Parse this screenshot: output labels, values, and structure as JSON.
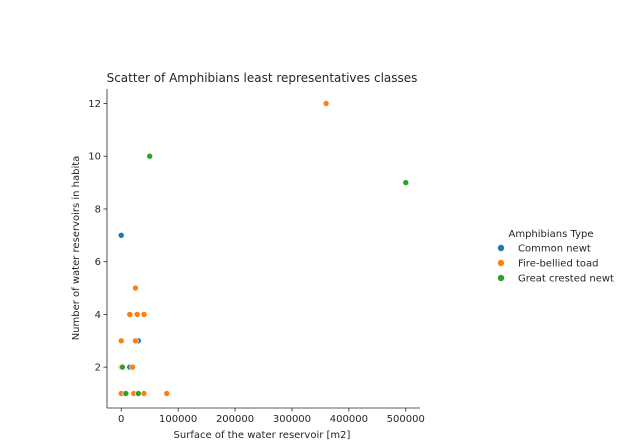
{
  "chart_data": {
    "type": "scatter",
    "title": "Scatter of Amphibians least representatives classes",
    "xlabel": "Surface of the water reservoir [m2]",
    "ylabel": "Number of water reservoirs in habita",
    "xlim": [
      -25000,
      525000
    ],
    "ylim": [
      0.45,
      12.55
    ],
    "xticks": [
      0,
      100000,
      200000,
      300000,
      400000,
      500000
    ],
    "xtick_labels": [
      "0",
      "100000",
      "200000",
      "300000",
      "400000",
      "500000"
    ],
    "yticks": [
      2,
      4,
      6,
      8,
      10,
      12
    ],
    "ytick_labels": [
      "2",
      "4",
      "6",
      "8",
      "10",
      "12"
    ],
    "grid": false,
    "legend": {
      "title": "Amphibians Type",
      "placement": "right"
    },
    "series": [
      {
        "name": "Common newt",
        "color": "#1f77b4",
        "points": [
          {
            "x": 0,
            "y": 7
          },
          {
            "x": 15000,
            "y": 2
          },
          {
            "x": 5000,
            "y": 1
          },
          {
            "x": 30000,
            "y": 3
          },
          {
            "x": 1000,
            "y": 2
          }
        ]
      },
      {
        "name": "Fire-bellied toad",
        "color": "#ff7f0e",
        "points": [
          {
            "x": 360000,
            "y": 12
          },
          {
            "x": 25000,
            "y": 5
          },
          {
            "x": 15000,
            "y": 4
          },
          {
            "x": 28000,
            "y": 4
          },
          {
            "x": 40000,
            "y": 4
          },
          {
            "x": 0,
            "y": 3
          },
          {
            "x": 25000,
            "y": 3
          },
          {
            "x": 0,
            "y": 2
          },
          {
            "x": 20000,
            "y": 2
          },
          {
            "x": 0,
            "y": 1
          },
          {
            "x": 22000,
            "y": 1
          },
          {
            "x": 40000,
            "y": 1
          },
          {
            "x": 80000,
            "y": 1
          }
        ]
      },
      {
        "name": "Great crested newt",
        "color": "#2ca02c",
        "points": [
          {
            "x": 50000,
            "y": 10
          },
          {
            "x": 500000,
            "y": 9
          },
          {
            "x": 2000,
            "y": 2
          },
          {
            "x": 8000,
            "y": 1
          },
          {
            "x": 30000,
            "y": 1
          }
        ]
      }
    ]
  }
}
